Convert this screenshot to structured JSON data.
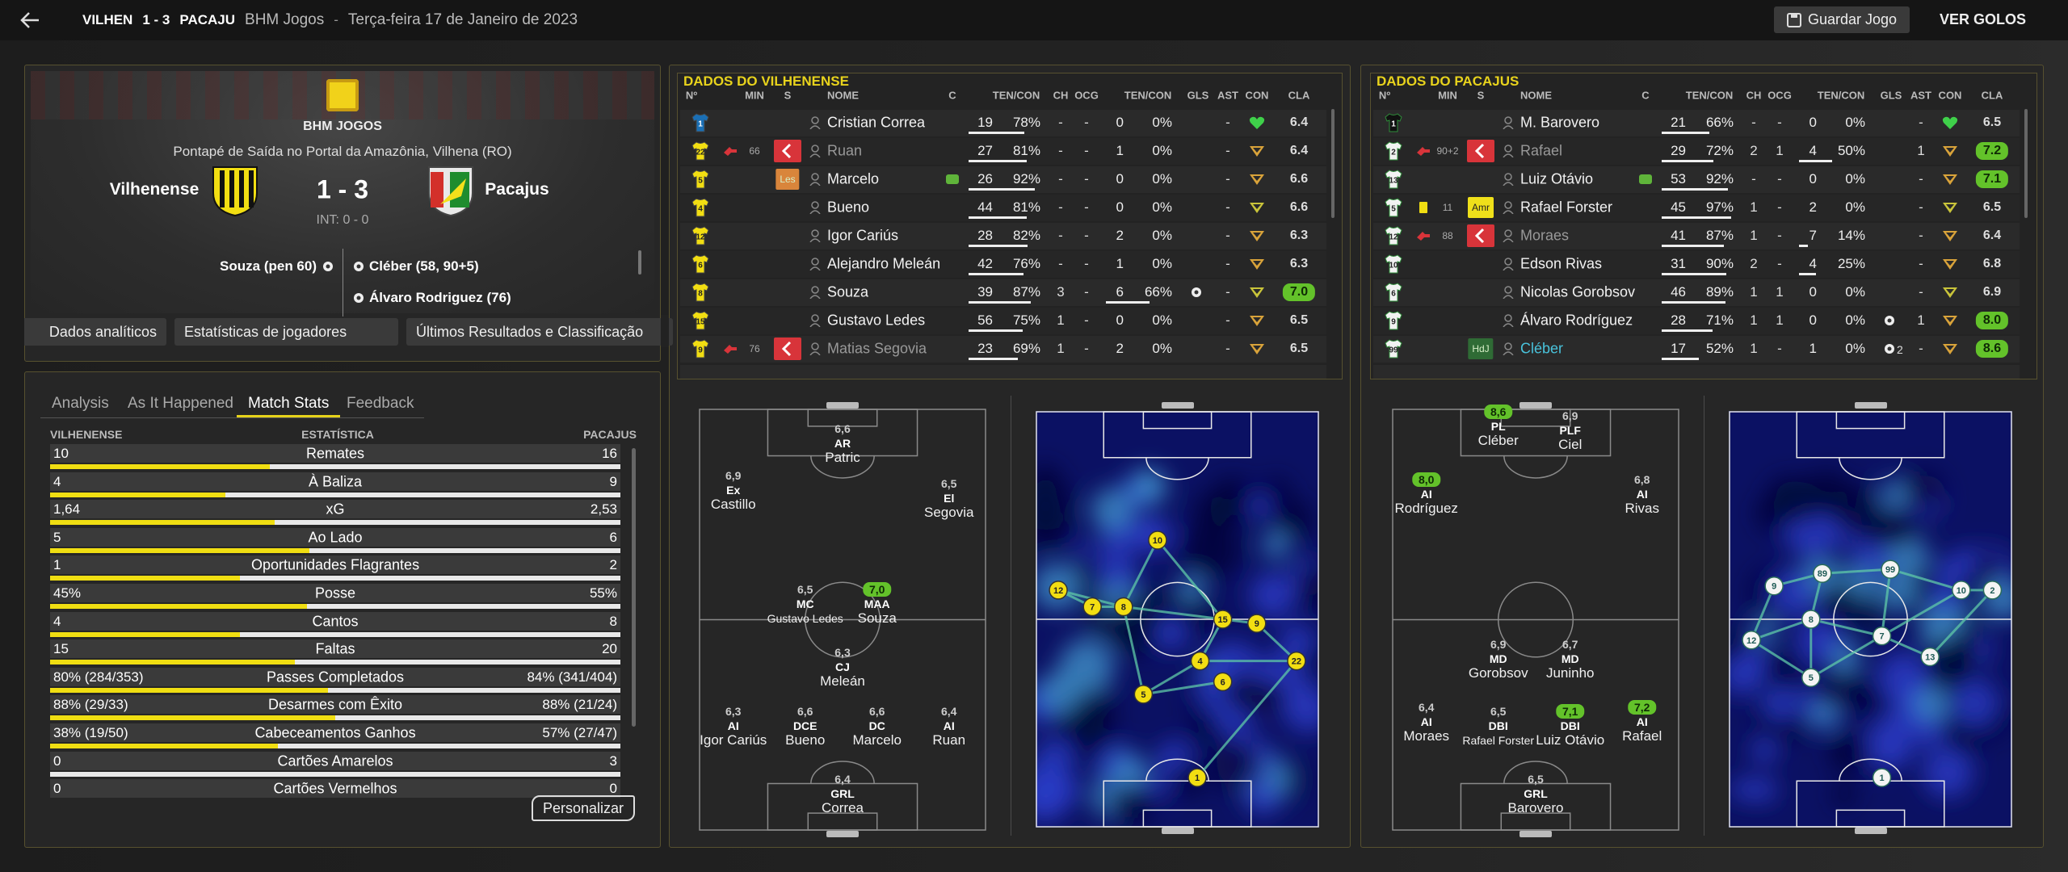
{
  "header": {
    "home_short": "VILHEN",
    "score": "1 - 3",
    "away_short": "PACAJU",
    "competition": "BHM Jogos",
    "separator": "-",
    "date": "Terça-feira 17 de Janeiro de 2023",
    "save_button": "Guardar Jogo",
    "goals_button": "VER GOLOS"
  },
  "match": {
    "competition": "BHM JOGOS",
    "venue": "Pontapé de Saída no Portal da Amazônia, Vilhena (RO)",
    "home": "Vilhenense",
    "score": "1 - 3",
    "away": "Pacajus",
    "half_time": "INT: 0 - 0",
    "home_scorers": [
      "Souza (pen 60)"
    ],
    "away_scorers": [
      "Cléber (58, 90+5)",
      "Álvaro Rodriguez (76)"
    ],
    "buttons": [
      "Dados analíticos",
      "Estatísticas de jogadores",
      "Últimos Resultados e Classificação"
    ]
  },
  "stats": {
    "tabs": [
      "Analysis",
      "As It Happened",
      "Match Stats",
      "Feedback"
    ],
    "active_tab": 2,
    "columns": [
      "VILHENENSE",
      "ESTATÍSTICA",
      "PACAJUS"
    ],
    "rows": [
      {
        "home": "10",
        "label": "Remates",
        "away": "16"
      },
      {
        "home": "4",
        "label": "À Baliza",
        "away": "9"
      },
      {
        "home": "1,64",
        "label": "xG",
        "away": "2,53"
      },
      {
        "home": "5",
        "label": "Ao Lado",
        "away": "6"
      },
      {
        "home": "1",
        "label": "Oportunidades Flagrantes",
        "away": "2"
      },
      {
        "home": "45%",
        "label": "Posse",
        "away": "55%"
      },
      {
        "home": "4",
        "label": "Cantos",
        "away": "8"
      },
      {
        "home": "15",
        "label": "Faltas",
        "away": "20"
      },
      {
        "home": "80% (284/353)",
        "label": "Passes Completados",
        "away": "84% (341/404)"
      },
      {
        "home": "88% (29/33)",
        "label": "Desarmes com Êxito",
        "away": "88% (21/24)"
      },
      {
        "home": "38% (19/50)",
        "label": "Cabeceamentos Ganhos",
        "away": "57% (27/47)"
      },
      {
        "home": "0",
        "label": "Cartões Amarelos",
        "away": "3"
      },
      {
        "home": "0",
        "label": "Cartões Vermelhos",
        "away": "0"
      }
    ],
    "customize_button": "Personalizar"
  },
  "teams": [
    {
      "title": "DADOS DO VILHENENSE",
      "kit": "home",
      "columns": [
        "Nº",
        "MIN",
        "S",
        "NOME",
        "C",
        "TEN/CON",
        "CH",
        "OCG",
        "TEN/CON",
        "GLS",
        "AST",
        "CON",
        "CLA"
      ],
      "players": [
        {
          "shirt": "1",
          "name": "Cristian Correa",
          "ten": "19",
          "ten_pct": "78%",
          "ch": "-",
          "ocg": "-",
          "ten2": "0",
          "ten2_pct": "0%",
          "ast": "-",
          "cla": "6.4"
        },
        {
          "shirt": "22",
          "min": "66",
          "event": "sub",
          "sub_badge": true,
          "name": "Ruan",
          "ten": "27",
          "ten_pct": "81%",
          "ch": "-",
          "ocg": "-",
          "ten2": "1",
          "ten2_pct": "0%",
          "ast": "-",
          "cla": "6.4"
        },
        {
          "shirt": "5",
          "s": "Les",
          "s_color": "#d9853b",
          "captain": true,
          "name": "Marcelo",
          "ten": "26",
          "ten_pct": "92%",
          "ch": "-",
          "ocg": "-",
          "ten2": "0",
          "ten2_pct": "0%",
          "ast": "-",
          "cla": "6.6"
        },
        {
          "shirt": "4",
          "name": "Bueno",
          "ten": "44",
          "ten_pct": "81%",
          "ch": "-",
          "ocg": "-",
          "ten2": "0",
          "ten2_pct": "0%",
          "ast": "-",
          "cla": "6.6"
        },
        {
          "shirt": "12",
          "name": "Igor Cariús",
          "ten": "28",
          "ten_pct": "82%",
          "ch": "-",
          "ocg": "-",
          "ten2": "2",
          "ten2_pct": "0%",
          "ast": "-",
          "cla": "6.3"
        },
        {
          "shirt": "6",
          "name": "Alejandro Meleán",
          "ten": "42",
          "ten_pct": "76%",
          "ch": "-",
          "ocg": "-",
          "ten2": "1",
          "ten2_pct": "0%",
          "ast": "-",
          "cla": "6.3"
        },
        {
          "shirt": "8",
          "name": "Souza",
          "ten": "39",
          "ten_pct": "87%",
          "ch": "3",
          "ocg": "-",
          "ten2": "6",
          "ten2_pct": "66%",
          "goal": true,
          "ast": "-",
          "cla": "7.0",
          "cla_high": true
        },
        {
          "shirt": "15",
          "name": "Gustavo Ledes",
          "ten": "56",
          "ten_pct": "75%",
          "ch": "1",
          "ocg": "-",
          "ten2": "0",
          "ten2_pct": "0%",
          "ast": "-",
          "cla": "6.5"
        },
        {
          "shirt": "9",
          "min": "76",
          "event": "sub",
          "sub_badge": true,
          "name": "Matias Segovia",
          "ten": "23",
          "ten_pct": "69%",
          "ch": "1",
          "ocg": "-",
          "ten2": "2",
          "ten2_pct": "0%",
          "ast": "-",
          "cla": "6.5"
        }
      ],
      "formation": [
        {
          "rating": "6,4",
          "pos": "GRL",
          "name": "Correa"
        },
        {
          "rating": "6,3",
          "pos": "AI",
          "name": "Igor Cariús"
        },
        {
          "rating": "6,6",
          "pos": "DCE",
          "name": "Bueno"
        },
        {
          "rating": "6,6",
          "pos": "DC",
          "name": "Marcelo"
        },
        {
          "rating": "6,4",
          "pos": "AI",
          "name": "Ruan"
        },
        {
          "rating": "6,3",
          "pos": "CJ",
          "name": "Meleán"
        },
        {
          "rating": "6,5",
          "pos": "MC",
          "name": "Gustavo Ledes"
        },
        {
          "rating": "7,0",
          "pos": "MAA",
          "name": "Souza",
          "high": true
        },
        {
          "rating": "6,9",
          "pos": "Ex",
          "name": "Castillo"
        },
        {
          "rating": "6,6",
          "pos": "AR",
          "name": "Patric"
        },
        {
          "rating": "6,5",
          "pos": "El",
          "name": "Segovia"
        }
      ],
      "heatmap_numbers": [
        "10",
        "12",
        "7",
        "8",
        "15",
        "9",
        "4",
        "22",
        "6",
        "5",
        "1"
      ]
    },
    {
      "title": "DADOS DO PACAJUS",
      "kit": "away",
      "columns": [
        "Nº",
        "MIN",
        "S",
        "NOME",
        "C",
        "TEN/CON",
        "CH",
        "OCG",
        "TEN/CON",
        "GLS",
        "AST",
        "CON",
        "CLA"
      ],
      "players": [
        {
          "shirt": "1",
          "name": "M. Barovero",
          "ten": "21",
          "ten_pct": "66%",
          "ch": "-",
          "ocg": "-",
          "ten2": "0",
          "ten2_pct": "0%",
          "ast": "-",
          "cla": "6.5"
        },
        {
          "shirt": "2",
          "min": "90+2",
          "event": "sub",
          "sub_badge": true,
          "name": "Rafael",
          "ten": "29",
          "ten_pct": "72%",
          "ch": "2",
          "ocg": "1",
          "ten2": "4",
          "ten2_pct": "50%",
          "ast": "1",
          "cla": "7.2",
          "cla_high": true
        },
        {
          "shirt": "13",
          "captain": true,
          "name": "Luiz Otávio",
          "ten": "53",
          "ten_pct": "92%",
          "ch": "-",
          "ocg": "-",
          "ten2": "0",
          "ten2_pct": "0%",
          "ast": "-",
          "cla": "7.1",
          "cla_high": true
        },
        {
          "shirt": "5",
          "min": "11",
          "event": "yellow",
          "s": "Amr",
          "s_color": "#efe01a",
          "name": "Rafael Forster",
          "ten": "45",
          "ten_pct": "97%",
          "ch": "1",
          "ocg": "-",
          "ten2": "2",
          "ten2_pct": "0%",
          "ast": "-",
          "cla": "6.5"
        },
        {
          "shirt": "12",
          "min": "88",
          "event": "sub",
          "sub_badge": true,
          "name": "Moraes",
          "ten": "41",
          "ten_pct": "87%",
          "ch": "1",
          "ocg": "-",
          "ten2": "7",
          "ten2_pct": "14%",
          "ast": "-",
          "cla": "6.4"
        },
        {
          "shirt": "10",
          "name": "Edson Rivas",
          "ten": "31",
          "ten_pct": "90%",
          "ch": "2",
          "ocg": "-",
          "ten2": "4",
          "ten2_pct": "25%",
          "ast": "-",
          "cla": "6.8"
        },
        {
          "shirt": "6",
          "name": "Nicolas Gorobsov",
          "ten": "46",
          "ten_pct": "89%",
          "ch": "1",
          "ocg": "1",
          "ten2": "0",
          "ten2_pct": "0%",
          "ast": "-",
          "cla": "6.9"
        },
        {
          "shirt": "9",
          "name": "Álvaro Rodríguez",
          "ten": "28",
          "ten_pct": "71%",
          "ch": "1",
          "ocg": "1",
          "ten2": "0",
          "ten2_pct": "0%",
          "goal": true,
          "ast": "1",
          "cla": "8.0",
          "cla_high": true
        },
        {
          "shirt": "99",
          "s": "HdJ",
          "s_color": "#2f6b35",
          "name": "Cléber",
          "name_color": "#49c3dc",
          "ten": "17",
          "ten_pct": "52%",
          "ch": "1",
          "ocg": "-",
          "ten2": "1",
          "ten2_pct": "0%",
          "goal": true,
          "goal_count": "2",
          "ast": "-",
          "cla": "8.6",
          "cla_high": true
        }
      ],
      "formation": [
        {
          "rating": "6,5",
          "pos": "GRL",
          "name": "Barovero"
        },
        {
          "rating": "6,4",
          "pos": "AI",
          "name": "Moraes"
        },
        {
          "rating": "6,5",
          "pos": "DBI",
          "name": "Rafael Forster"
        },
        {
          "rating": "7,1",
          "pos": "DBI",
          "name": "Luiz Otávio",
          "high": true
        },
        {
          "rating": "7,2",
          "pos": "AI",
          "name": "Rafael",
          "high": true
        },
        {
          "rating": "6,9",
          "pos": "MD",
          "name": "Gorobsov"
        },
        {
          "rating": "6,7",
          "pos": "MD",
          "name": "Juninho"
        },
        {
          "rating": "8,0",
          "pos": "AI",
          "name": "Rodríguez",
          "high": true
        },
        {
          "rating": "6,8",
          "pos": "AI",
          "name": "Rivas"
        },
        {
          "rating": "8,6",
          "pos": "PL",
          "name": "Cléber",
          "high": true
        },
        {
          "rating": "6,9",
          "pos": "PLF",
          "name": "Ciel"
        }
      ],
      "heatmap_numbers": [
        "89",
        "9",
        "8",
        "12",
        "7",
        "99",
        "10",
        "2",
        "13",
        "5",
        "1"
      ]
    }
  ]
}
